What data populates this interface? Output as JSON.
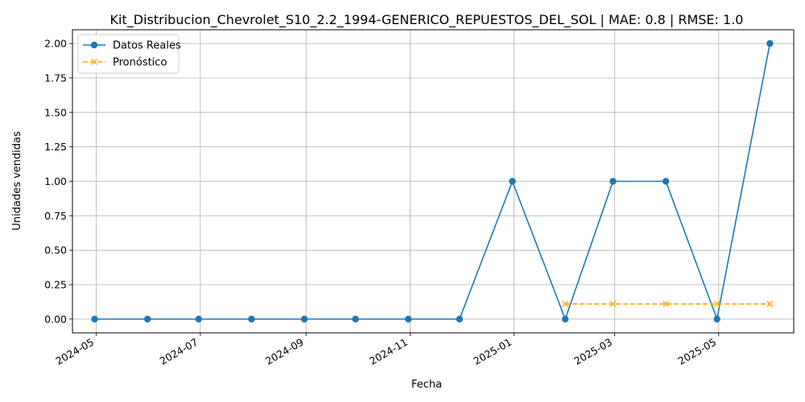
{
  "chart_data": {
    "type": "line",
    "title": "Kit_Distribucion_Chevrolet_S10_2.2_1994-GENERICO_REPUESTOS_DEL_SOL | MAE: 0.8 | RMSE: 1.0",
    "xlabel": "Fecha",
    "ylabel": "Unidades vendidas",
    "ylim": [
      -0.1,
      2.1
    ],
    "xlim": [
      "2024-04-17",
      "2025-06-14"
    ],
    "grid": true,
    "legend_position": "top-left",
    "x_ticks": [
      "2024-05",
      "2024-07",
      "2024-09",
      "2024-11",
      "2025-01",
      "2025-03",
      "2025-05"
    ],
    "y_ticks": [
      "0.00",
      "0.25",
      "0.50",
      "0.75",
      "1.00",
      "1.25",
      "1.50",
      "1.75",
      "2.00"
    ],
    "series": [
      {
        "name": "Datos Reales",
        "color": "#1f77b4",
        "marker": "circle",
        "line_style": "solid",
        "x": [
          "2024-04-30",
          "2024-05-31",
          "2024-06-30",
          "2024-07-31",
          "2024-08-31",
          "2024-09-30",
          "2024-10-31",
          "2024-11-30",
          "2024-12-31",
          "2025-01-31",
          "2025-02-28",
          "2025-03-31",
          "2025-04-30",
          "2025-05-31"
        ],
        "values": [
          0,
          0,
          0,
          0,
          0,
          0,
          0,
          0,
          1,
          0,
          1,
          1,
          0,
          2
        ]
      },
      {
        "name": "Pronóstico",
        "color": "#ffa500",
        "marker": "x",
        "line_style": "dashed",
        "x": [
          "2025-01-31",
          "2025-02-28",
          "2025-03-31",
          "2025-04-30",
          "2025-05-31"
        ],
        "values": [
          0.11,
          0.11,
          0.11,
          0.11,
          0.11
        ]
      }
    ]
  }
}
